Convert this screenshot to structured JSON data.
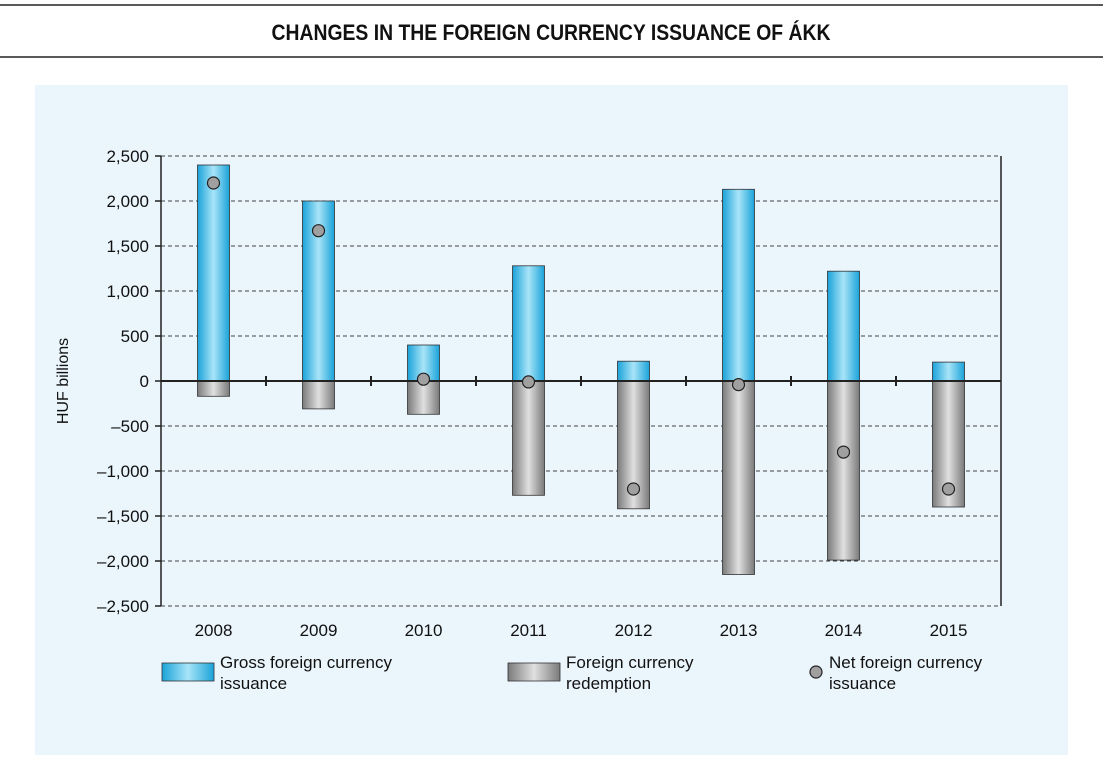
{
  "chart_data": {
    "type": "bar",
    "title": "CHANGES IN THE FOREIGN CURRENCY ISSUANCE OF ÁKK",
    "ylabel": "HUF billions",
    "categories": [
      "2008",
      "2009",
      "2010",
      "2011",
      "2012",
      "2013",
      "2014",
      "2015"
    ],
    "series": [
      {
        "name": "Gross foreign currency issuance",
        "type": "bar",
        "color": "#29b5e8",
        "values": [
          2400,
          2000,
          400,
          1280,
          220,
          2130,
          1220,
          210
        ]
      },
      {
        "name": "Foreign currency redemption",
        "type": "bar",
        "color": "#8c8c8c",
        "values": [
          -170,
          -310,
          -370,
          -1270,
          -1420,
          -2150,
          -1990,
          -1400
        ]
      },
      {
        "name": "Net foreign currency issuance",
        "type": "point",
        "color": "#a0a0a0",
        "values": [
          2200,
          1670,
          20,
          -10,
          -1200,
          -40,
          -790,
          -1200
        ]
      }
    ],
    "ylim": [
      -2500,
      2500
    ],
    "yticks": [
      {
        "value": -2500,
        "label": "–2,500"
      },
      {
        "value": -2000,
        "label": "–2,000"
      },
      {
        "value": -1500,
        "label": "–1,500"
      },
      {
        "value": -1000,
        "label": "–1,000"
      },
      {
        "value": -500,
        "label": "–500"
      },
      0,
      500,
      {
        "value": 1000,
        "label": "1,000"
      },
      {
        "value": 1500,
        "label": "1,500"
      },
      {
        "value": 2000,
        "label": "2,000"
      },
      {
        "value": 2500,
        "label": "2,500"
      }
    ],
    "grid": true,
    "legend": "bottom"
  }
}
